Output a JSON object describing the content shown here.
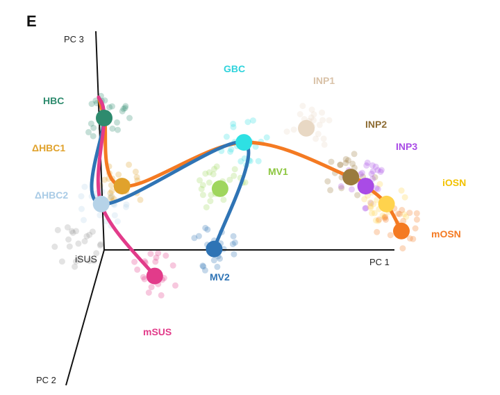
{
  "panel_letter": "E",
  "chart_data": {
    "type": "scatter",
    "title": "",
    "axes": {
      "x": {
        "label": "PC 1"
      },
      "y": {
        "label": "PC 3"
      },
      "z": {
        "label": "PC 2"
      }
    },
    "grid": false,
    "legend": "none",
    "series": [
      {
        "name": "HBC",
        "color": "#2e8b6e",
        "x": 0.0,
        "y": 1.0,
        "text_color": "#2e8b6e"
      },
      {
        "name": "ΔHBC1",
        "color": "#e0a22c",
        "x": 0.06,
        "y": 0.47,
        "text_color": "#e0a22c"
      },
      {
        "name": "ΔHBC2",
        "color": "#b6d3e8",
        "x": -0.01,
        "y": 0.33,
        "text_color": "#a9cbe6"
      },
      {
        "name": "iSUS",
        "color": "#9a9a9a",
        "x": -0.1,
        "y": 0.0,
        "text_color": "#333333"
      },
      {
        "name": "mSUS",
        "color": "#e23b8a",
        "x": 0.17,
        "y": -0.23,
        "text_color": "#e23b8a"
      },
      {
        "name": "GBC",
        "color": "#2ee0e3",
        "x": 0.47,
        "y": 0.81,
        "text_color": "#2fd3dc"
      },
      {
        "name": "MV1",
        "color": "#9fd65d",
        "x": 0.39,
        "y": 0.45,
        "text_color": "#8cc63f"
      },
      {
        "name": "MV2",
        "color": "#2f74b5",
        "x": 0.37,
        "y": -0.02,
        "text_color": "#2f74b5"
      },
      {
        "name": "INP1",
        "color": "#e8d8c4",
        "x": 0.68,
        "y": 0.92,
        "text_color": "#d9c2a8"
      },
      {
        "name": "INP2",
        "color": "#9a7b3e",
        "x": 0.83,
        "y": 0.54,
        "text_color": "#8d6c33"
      },
      {
        "name": "INP3",
        "color": "#a94be6",
        "x": 0.88,
        "y": 0.47,
        "text_color": "#a94be6"
      },
      {
        "name": "iOSN",
        "color": "#ffd34d",
        "x": 0.95,
        "y": 0.33,
        "text_color": "#f2c200"
      },
      {
        "name": "mOSN",
        "color": "#f47a22",
        "x": 1.0,
        "y": 0.12,
        "text_color": "#f47a22"
      }
    ],
    "lineages": [
      {
        "color": "#f47a22",
        "path": [
          "HBC",
          "ΔHBC1",
          "GBC",
          "INP2",
          "INP3",
          "iOSN",
          "mOSN"
        ]
      },
      {
        "color": "#2f74b5",
        "path": [
          "HBC",
          "ΔHBC2",
          "GBC",
          "MV2"
        ]
      },
      {
        "color": "#e23b8a",
        "path": [
          "HBC",
          "ΔHBC2",
          "mSUS"
        ]
      }
    ],
    "dim_dot_colors": [
      "#2e8b6e",
      "#e0a22c",
      "#b6d3e8",
      "#9a9a9a",
      "#e23b8a",
      "#2ee0e3",
      "#9fd65d",
      "#2f74b5",
      "#e8d8c4",
      "#9a7b3e",
      "#a94be6",
      "#ffd34d",
      "#f47a22"
    ]
  }
}
